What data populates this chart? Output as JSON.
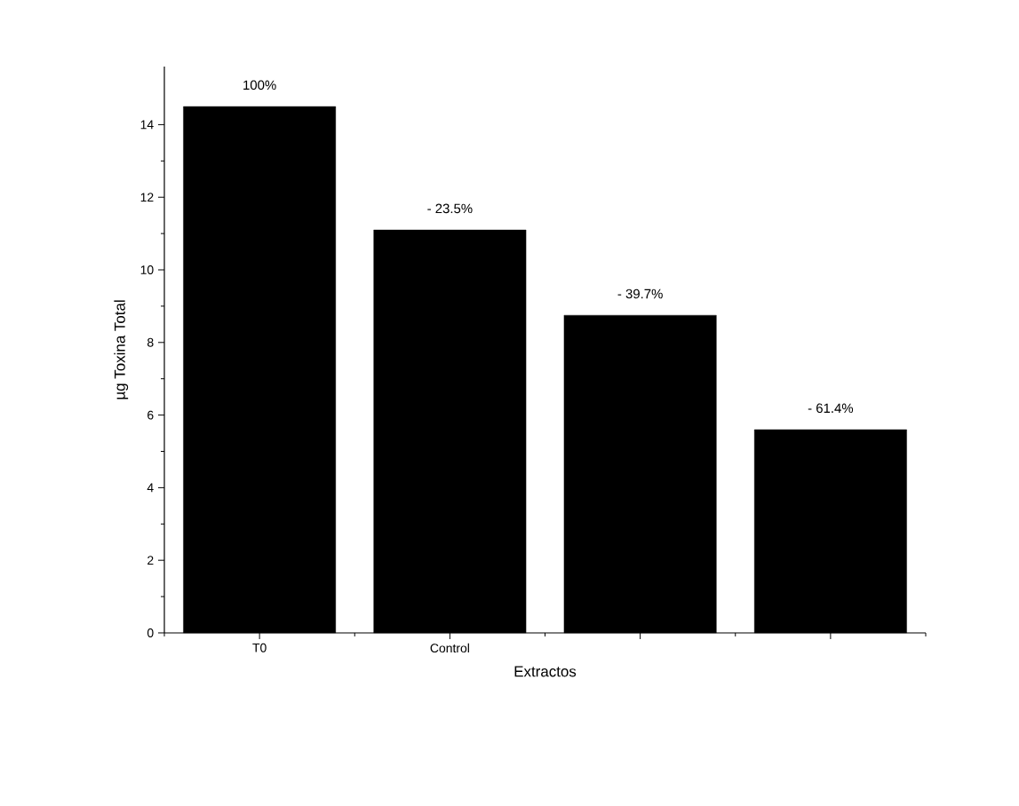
{
  "chart_data": {
    "type": "bar",
    "xlabel": "Extractos",
    "ylabel": "µg Toxina Total",
    "categories": [
      "T0",
      "Control",
      null,
      null
    ],
    "values": [
      14.5,
      11.1,
      8.75,
      5.6
    ],
    "annotations": [
      {
        "text": "100%",
        "x": "T0",
        "y": 14.5
      },
      {
        "text": "- 23.5%",
        "x": "Control",
        "y": 11.1
      },
      {
        "text": "- 39.7%",
        "y": 8.75
      },
      {
        "text": "- 61.4%",
        "y": 5.6
      }
    ],
    "color": "#000000",
    "ylim": [
      0,
      15.6
    ],
    "yticks": [
      0,
      2,
      4,
      6,
      8,
      10,
      12,
      14
    ]
  }
}
